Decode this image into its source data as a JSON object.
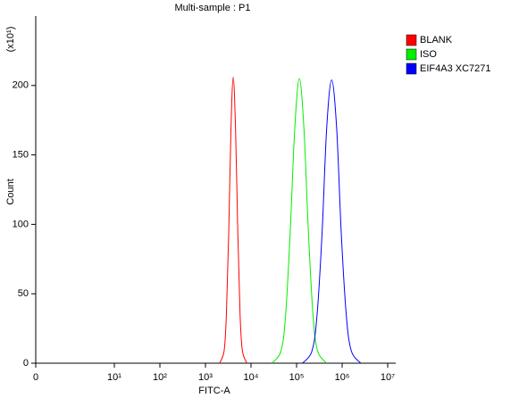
{
  "chart_data": {
    "type": "histogram_overlay",
    "title": "Multi-sample : P1",
    "x_label": "FITC-A",
    "y_label": "Count",
    "y_multiplier": "(x10¹)",
    "xscale": "biexponential",
    "xlim": [
      0,
      15000000
    ],
    "xticks": [
      0,
      {
        "value": 10,
        "label": "10¹"
      },
      {
        "value": 100,
        "label": "10²"
      },
      {
        "value": 1000,
        "label": "10³"
      },
      {
        "value": 10000,
        "label": "10⁴"
      },
      {
        "value": 100000,
        "label": "10⁵"
      },
      {
        "value": 1000000,
        "label": "10⁶"
      },
      {
        "value": 10000000,
        "label": "10⁷"
      }
    ],
    "ylim": [
      0,
      250
    ],
    "yticks": [
      0,
      50,
      100,
      150,
      200
    ],
    "grid": false,
    "legend": "top-right",
    "series": [
      {
        "name": "BLANK",
        "color": "#ff0000",
        "x": [
          2040,
          2570,
          2880,
          3240,
          3630,
          4070,
          4570,
          5130,
          5750,
          6460,
          8130
        ],
        "values": [
          0,
          9,
          35,
          94,
          169,
          206,
          169,
          94,
          35,
          9,
          0
        ]
      },
      {
        "name": "ISO",
        "color": "#00ee00",
        "x": [
          28800,
          45700,
          57500,
          72400,
          91200,
          115000,
          145000,
          182000,
          229000,
          288000,
          457000
        ],
        "values": [
          0,
          9,
          35,
          94,
          169,
          205,
          169,
          94,
          35,
          9,
          0
        ]
      },
      {
        "name": "EIF4A3 XC7271",
        "color": "#0000ff",
        "x": [
          134900,
          218800,
          281800,
          363100,
          457100,
          588800,
          758600,
          955000,
          1230000,
          1585000,
          2570000
        ],
        "values": [
          0,
          9,
          35,
          94,
          169,
          204,
          169,
          94,
          35,
          9,
          0
        ]
      }
    ]
  }
}
